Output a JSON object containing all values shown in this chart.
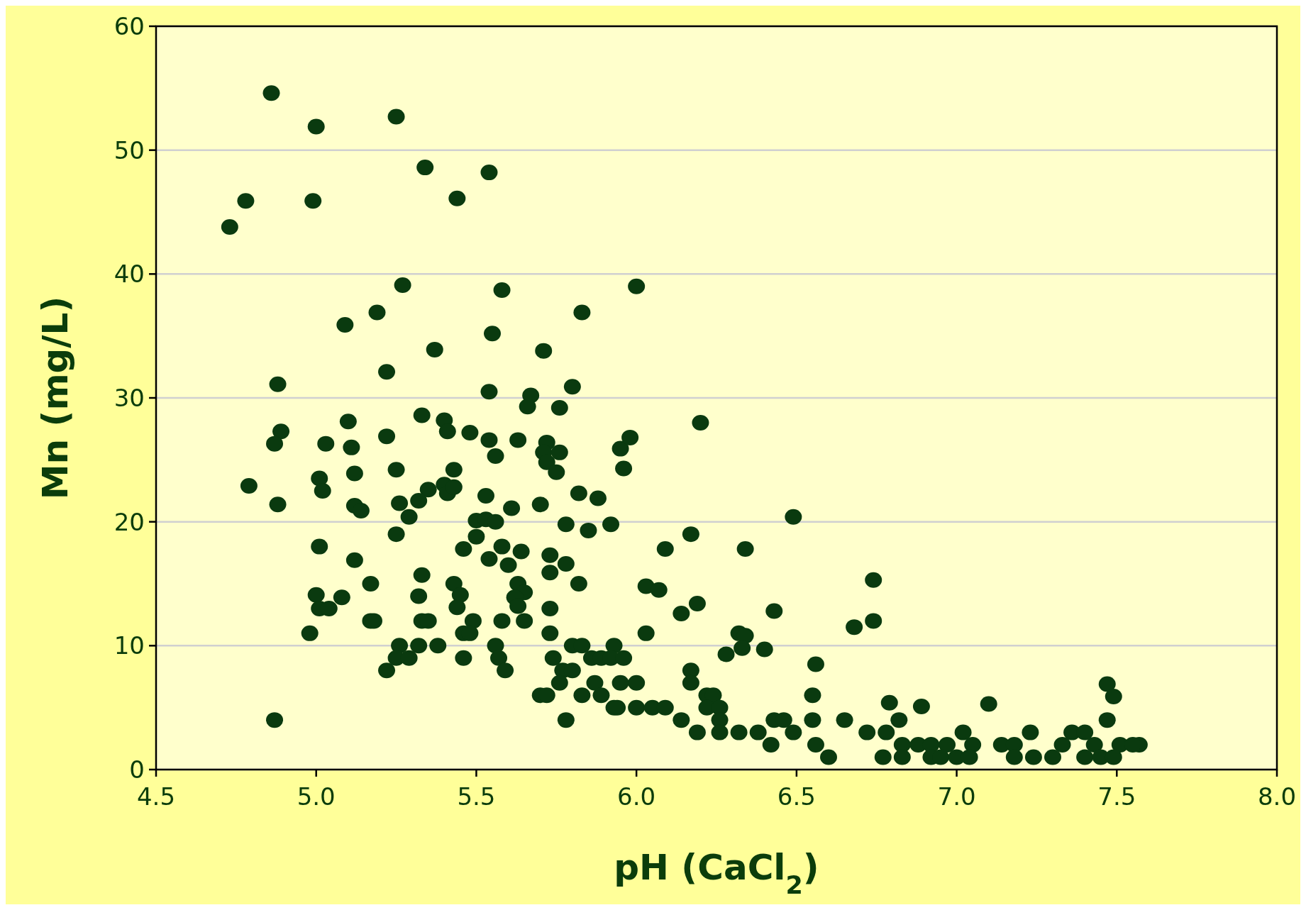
{
  "chart_data": {
    "type": "scatter",
    "xlabel": "pH (CaCl$_{2}$)",
    "ylabel": "Mn (mg/L)",
    "xlim": [
      4.5,
      8.0
    ],
    "ylim": [
      0,
      60
    ],
    "xticks": [
      {
        "value": 4.5,
        "label": "4.5"
      },
      {
        "value": 5,
        "label": "5.0"
      },
      {
        "value": 5.5,
        "label": "5.5"
      },
      {
        "value": 6,
        "label": "6.0"
      },
      {
        "value": 6.5,
        "label": "6.5"
      },
      {
        "value": 7,
        "label": "7.0"
      },
      {
        "value": 7.5,
        "label": "7.5"
      },
      {
        "value": 8,
        "label": "8.0"
      }
    ],
    "yticks": [
      0,
      10,
      20,
      30,
      40,
      50,
      60
    ],
    "grid": "y",
    "marker": "circle",
    "series": [
      {
        "color": "#0a3a0f",
        "x": [
          4.73,
          4.78,
          4.86,
          5.0,
          4.99,
          5.25,
          5.34,
          5.54,
          5.44,
          5.27,
          5.58,
          6.0,
          5.09,
          5.19,
          5.83,
          5.55,
          5.37,
          5.71,
          5.22,
          4.88,
          5.54,
          5.67,
          5.66,
          5.8,
          5.76,
          6.2,
          5.33,
          5.4,
          5.41,
          5.48,
          5.1,
          4.89,
          4.87,
          5.03,
          5.11,
          5.22,
          5.54,
          5.63,
          5.72,
          5.71,
          5.76,
          5.72,
          5.75,
          5.56,
          5.95,
          5.98,
          5.96,
          5.25,
          5.43,
          5.12,
          4.79,
          5.01,
          5.02,
          5.35,
          5.4,
          5.41,
          5.43,
          5.53,
          5.82,
          5.88,
          4.88,
          5.12,
          5.14,
          5.26,
          5.32,
          5.29,
          5.61,
          5.7,
          5.5,
          5.53,
          5.56,
          5.78,
          5.92,
          6.49,
          5.25,
          5.5,
          6.17,
          5.85,
          5.01,
          5.46,
          5.58,
          5.64,
          5.73,
          6.09,
          6.34,
          5.12,
          5.54,
          5.6,
          5.78,
          5.73,
          5.33,
          6.74,
          5.17,
          5.43,
          5.63,
          5.82,
          5.45,
          5.65,
          5.62,
          6.03,
          6.07,
          5.0,
          5.08,
          5.32,
          5.01,
          5.04,
          5.44,
          5.63,
          5.73,
          6.19,
          6.14,
          6.43,
          5.17,
          5.18,
          5.33,
          5.35,
          5.49,
          5.58,
          5.65,
          6.74,
          6.68,
          4.98,
          5.46,
          5.48,
          5.73,
          6.03,
          6.32,
          6.34,
          5.26,
          5.32,
          5.38,
          5.56,
          5.8,
          5.83,
          5.93,
          6.33,
          6.28,
          6.4,
          5.74,
          5.86,
          5.89,
          5.92,
          5.96,
          5.57,
          5.25,
          5.29,
          5.46,
          6.56,
          5.22,
          5.59,
          5.77,
          5.8,
          6.17,
          5.76,
          5.87,
          5.95,
          6.0,
          6.17,
          7.47,
          5.7,
          5.72,
          5.83,
          5.89,
          6.22,
          6.24,
          6.55,
          7.49,
          6.79,
          7.1,
          5.93,
          5.94,
          6.0,
          6.05,
          6.09,
          6.22,
          6.26,
          6.89,
          4.87,
          5.78,
          6.14,
          6.26,
          6.43,
          6.46,
          6.55,
          6.65,
          6.82,
          7.47,
          6.19,
          6.26,
          6.32,
          6.38,
          6.49,
          6.72,
          6.78,
          7.02,
          7.23,
          7.36,
          7.4,
          6.42,
          6.56,
          6.83,
          6.88,
          6.92,
          6.97,
          7.05,
          7.14,
          7.18,
          7.33,
          7.43,
          7.51,
          7.57,
          7.55,
          6.6,
          6.77,
          6.83,
          6.92,
          6.95,
          7.0,
          7.04,
          7.18,
          7.24,
          7.3,
          7.4,
          7.45,
          7.49
        ],
        "values": [
          43.8,
          45.9,
          54.6,
          51.9,
          45.9,
          52.7,
          48.6,
          48.2,
          46.1,
          39.1,
          38.7,
          39.0,
          35.9,
          36.9,
          36.9,
          35.2,
          33.9,
          33.8,
          32.1,
          31.1,
          30.5,
          30.2,
          29.3,
          30.9,
          29.2,
          28.0,
          28.6,
          28.2,
          27.3,
          27.2,
          28.1,
          27.3,
          26.3,
          26.3,
          26.0,
          26.9,
          26.6,
          26.6,
          26.4,
          25.6,
          25.6,
          24.8,
          24.0,
          25.3,
          25.9,
          26.8,
          24.3,
          24.2,
          24.2,
          23.9,
          22.9,
          23.5,
          22.5,
          22.6,
          23.0,
          22.3,
          22.8,
          22.1,
          22.3,
          21.9,
          21.4,
          21.3,
          20.9,
          21.5,
          21.7,
          20.4,
          21.1,
          21.4,
          20.1,
          20.2,
          20.0,
          19.8,
          19.8,
          20.4,
          19.0,
          18.8,
          19.0,
          19.3,
          18.0,
          17.8,
          18.0,
          17.6,
          17.3,
          17.8,
          17.8,
          16.9,
          17.0,
          16.5,
          16.6,
          15.9,
          15.7,
          15.3,
          15.0,
          15.0,
          15.0,
          15.0,
          14.1,
          14.3,
          13.9,
          14.8,
          14.5,
          14.1,
          13.9,
          14.0,
          13.0,
          13.0,
          13.1,
          13.2,
          13.0,
          13.4,
          12.6,
          12.8,
          12.0,
          12.0,
          12.0,
          12.0,
          12.0,
          12.0,
          12.0,
          12.0,
          11.5,
          11.0,
          11.0,
          11.0,
          11.0,
          11.0,
          11.0,
          10.8,
          10.0,
          10.0,
          10.0,
          10.0,
          10.0,
          10.0,
          10.0,
          9.8,
          9.3,
          9.7,
          9.0,
          9.0,
          9.0,
          9.0,
          9.0,
          9.0,
          9.0,
          9.0,
          9.0,
          8.5,
          8.0,
          8.0,
          8.0,
          8.0,
          8.0,
          7.0,
          7.0,
          7.0,
          7.0,
          7.0,
          6.9,
          6.0,
          6.0,
          6.0,
          6.0,
          6.0,
          6.0,
          6.0,
          5.9,
          5.4,
          5.3,
          5.0,
          5.0,
          5.0,
          5.0,
          5.0,
          5.0,
          5.0,
          5.1,
          4.0,
          4.0,
          4.0,
          4.0,
          4.0,
          4.0,
          4.0,
          4.0,
          4.0,
          4.0,
          3.0,
          3.0,
          3.0,
          3.0,
          3.0,
          3.0,
          3.0,
          3.0,
          3.0,
          3.0,
          3.0,
          2.0,
          2.0,
          2.0,
          2.0,
          2.0,
          2.0,
          2.0,
          2.0,
          2.0,
          2.0,
          2.0,
          2.0,
          2.0,
          2.0,
          1.0,
          1.0,
          1.0,
          1.0,
          1.0,
          1.0,
          1.0,
          1.0,
          1.0,
          1.0,
          1.0,
          1.0,
          1.0
        ]
      }
    ]
  }
}
